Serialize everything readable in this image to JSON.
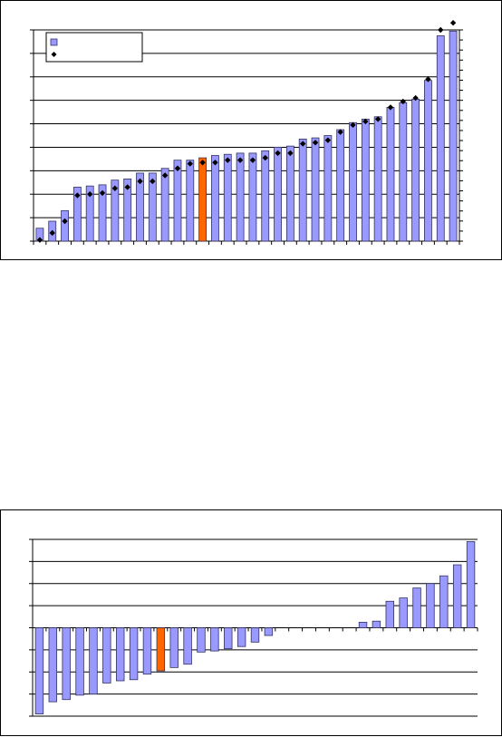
{
  "chart_data": [
    {
      "type": "bar",
      "title": "",
      "xlabel": "",
      "ylabel": "",
      "grid": true,
      "legend": "top-left",
      "highlight_index": 13,
      "colors": {
        "bar": "#9999ff",
        "bar_edge": "#33335f",
        "highlight": "#ff6600",
        "marker": "#000000"
      },
      "ylim": [
        0,
        9
      ],
      "series": [
        {
          "values": [
            0.55,
            0.85,
            1.3,
            2.3,
            2.35,
            2.4,
            2.6,
            2.65,
            2.9,
            2.9,
            3.1,
            3.45,
            3.45,
            3.55,
            3.65,
            3.7,
            3.75,
            3.75,
            3.85,
            4.0,
            4.05,
            4.35,
            4.4,
            4.5,
            4.75,
            5.05,
            5.2,
            5.3,
            5.7,
            5.9,
            6.05,
            6.85,
            8.75,
            8.95
          ],
          "secondary_values": [
            0.05,
            0.35,
            0.85,
            1.95,
            2.0,
            2.05,
            2.25,
            2.3,
            2.55,
            2.55,
            2.8,
            3.1,
            3.3,
            3.35,
            3.35,
            3.45,
            3.45,
            3.45,
            3.55,
            3.75,
            3.75,
            4.15,
            4.2,
            4.3,
            4.65,
            4.95,
            5.1,
            5.2,
            5.7,
            5.95,
            6.1,
            6.9,
            9.0,
            9.3
          ]
        }
      ]
    },
    {
      "type": "bar",
      "title": "",
      "xlabel": "",
      "ylabel": "",
      "grid": true,
      "highlight_index": 9,
      "colors": {
        "bar": "#9999ff",
        "bar_edge": "#33335f",
        "highlight": "#ff6600"
      },
      "ylim": [
        -4,
        4
      ],
      "series": [
        {
          "values": [
            -3.9,
            -3.35,
            -3.25,
            -3.05,
            -3.0,
            -2.5,
            -2.4,
            -2.35,
            -2.1,
            -1.95,
            -1.8,
            -1.65,
            -1.1,
            -1.05,
            -0.95,
            -0.85,
            -0.65,
            -0.35,
            0,
            0,
            0,
            0,
            0,
            0,
            0.25,
            0.3,
            1.2,
            1.35,
            1.8,
            2.0,
            2.35,
            2.85,
            3.9
          ]
        }
      ]
    }
  ]
}
